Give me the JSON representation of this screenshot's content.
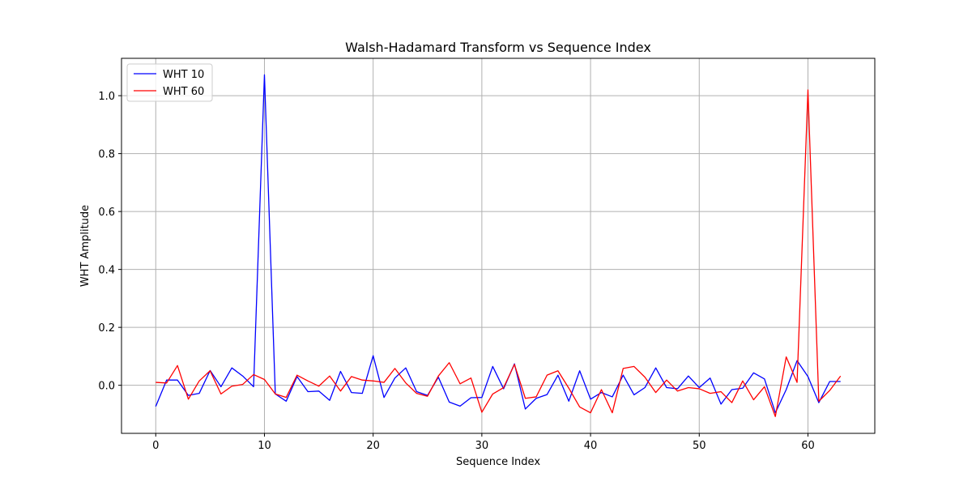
{
  "chart_data": {
    "type": "line",
    "title": "Walsh-Hadamard Transform vs Sequence Index",
    "xlabel": "Sequence Index",
    "ylabel": "WHT Amplitude",
    "xlim": [
      -3.15,
      66.15
    ],
    "ylim": [
      -0.166,
      1.129
    ],
    "xticks": [
      0,
      10,
      20,
      30,
      40,
      50,
      60
    ],
    "yticks": [
      0.0,
      0.2,
      0.4,
      0.6,
      0.8,
      1.0
    ],
    "xtick_labels": [
      "0",
      "10",
      "20",
      "30",
      "40",
      "50",
      "60"
    ],
    "ytick_labels": [
      "0.0",
      "0.2",
      "0.4",
      "0.6",
      "0.8",
      "1.0"
    ],
    "grid": true,
    "legend_position": "top-left",
    "x": [
      0,
      1,
      2,
      3,
      4,
      5,
      6,
      7,
      8,
      9,
      10,
      11,
      12,
      13,
      14,
      15,
      16,
      17,
      18,
      19,
      20,
      21,
      22,
      23,
      24,
      25,
      26,
      27,
      28,
      29,
      30,
      31,
      32,
      33,
      34,
      35,
      36,
      37,
      38,
      39,
      40,
      41,
      42,
      43,
      44,
      45,
      46,
      47,
      48,
      49,
      50,
      51,
      52,
      53,
      54,
      55,
      56,
      57,
      58,
      59,
      60,
      61,
      62,
      63
    ],
    "series": [
      {
        "name": "WHT 10",
        "color": "#0000ff",
        "values": [
          -0.073,
          0.018,
          0.018,
          -0.035,
          -0.028,
          0.051,
          -0.005,
          0.06,
          0.032,
          -0.005,
          1.072,
          -0.03,
          -0.055,
          0.03,
          -0.022,
          -0.02,
          -0.052,
          0.048,
          -0.025,
          -0.028,
          0.102,
          -0.042,
          0.025,
          0.06,
          -0.022,
          -0.035,
          0.028,
          -0.058,
          -0.072,
          -0.043,
          -0.042,
          0.065,
          -0.012,
          0.074,
          -0.082,
          -0.045,
          -0.032,
          0.035,
          -0.055,
          0.05,
          -0.048,
          -0.025,
          -0.04,
          0.035,
          -0.033,
          -0.008,
          0.06,
          -0.008,
          -0.012,
          0.032,
          -0.008,
          0.025,
          -0.065,
          -0.015,
          -0.01,
          0.043,
          0.022,
          -0.095,
          -0.015,
          0.085,
          0.03,
          -0.06,
          0.013,
          0.013
        ]
      },
      {
        "name": "WHT 60",
        "color": "#ff0000",
        "values": [
          0.01,
          0.008,
          0.068,
          -0.048,
          0.015,
          0.05,
          -0.03,
          -0.003,
          0.003,
          0.037,
          0.02,
          -0.03,
          -0.042,
          0.035,
          0.015,
          -0.003,
          0.032,
          -0.02,
          0.03,
          0.018,
          0.015,
          0.01,
          0.058,
          0.008,
          -0.028,
          -0.038,
          0.032,
          0.078,
          0.005,
          0.025,
          -0.093,
          -0.03,
          -0.008,
          0.072,
          -0.045,
          -0.04,
          0.035,
          0.05,
          -0.01,
          -0.075,
          -0.095,
          -0.015,
          -0.095,
          0.058,
          0.065,
          0.028,
          -0.025,
          0.018,
          -0.02,
          -0.008,
          -0.012,
          -0.028,
          -0.022,
          -0.06,
          0.015,
          -0.05,
          -0.005,
          -0.108,
          0.098,
          0.01,
          1.02,
          -0.055,
          -0.018,
          0.032
        ]
      }
    ]
  }
}
